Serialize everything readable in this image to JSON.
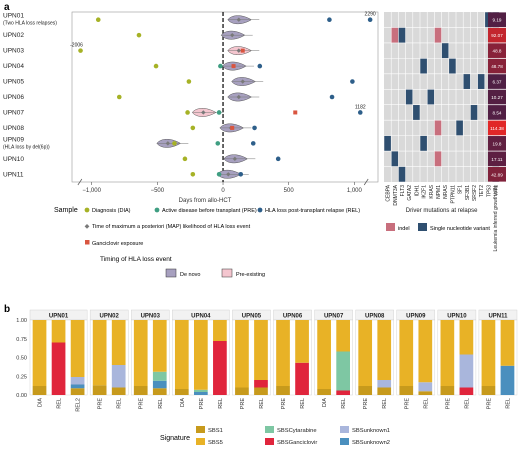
{
  "panels": {
    "a": "a",
    "b": "b"
  },
  "colors": {
    "dia": "#a6b226",
    "pre": "#3f9e82",
    "rel": "#2e5f8a",
    "map": "#7a7a7a",
    "gan": "#d95540",
    "denovo_fill": "#a7a0bf",
    "preexist_fill": "#f4c6cf",
    "indel": "#c86f7d",
    "snv": "#2f4f70",
    "grid": "#d9d9d9",
    "SBS1": "#c79a1c",
    "SBS5": "#e8b226",
    "SBSCytarabine": "#7ec7a3",
    "SBSGanciclovir": "#e0253c",
    "SBSunknown1": "#a9b6dc",
    "SBSunknown2": "#4a8fbe"
  },
  "chart_data": [
    {
      "type": "scatter",
      "xlabel": "Days from allo-HCT",
      "xticks": [
        "−1,000",
        "−500",
        "0",
        "500",
        "1,000"
      ],
      "xtick_values": [
        -1000,
        -500,
        0,
        500,
        1000
      ],
      "patients": [
        {
          "id": "UPN01",
          "sub": "(Two HLA loss relapses)",
          "dia": -950,
          "pre": null,
          "rel": [
            810,
            1120
          ],
          "denovo": true,
          "peak": 120,
          "top_label": "2290"
        },
        {
          "id": "UPN02",
          "sub": "",
          "dia": -640,
          "pre": null,
          "rel": [],
          "denovo": true,
          "peak": 70
        },
        {
          "id": "UPN03",
          "sub": "",
          "dia": -1085,
          "pre": null,
          "rel": [],
          "denovo": false,
          "peak": 120,
          "gan": [
            150
          ],
          "left_label": "-2006"
        },
        {
          "id": "UPN04",
          "sub": "",
          "dia": -510,
          "pre": -20,
          "rel": [
            280
          ],
          "denovo": true,
          "peak": 80,
          "gan": [
            80
          ]
        },
        {
          "id": "UPN05",
          "sub": "",
          "dia": -260,
          "pre": null,
          "rel": [
            985
          ],
          "denovo": true,
          "peak": 150
        },
        {
          "id": "UPN06",
          "sub": "",
          "dia": -790,
          "pre": null,
          "rel": [
            830
          ],
          "denovo": true,
          "peak": 120
        },
        {
          "id": "UPN07",
          "sub": "",
          "dia": -270,
          "pre": -30,
          "rel": [
            1045
          ],
          "denovo": false,
          "peak": -150,
          "gan": [
            550
          ],
          "top_label": "1182"
        },
        {
          "id": "UPN08",
          "sub": "",
          "dia": -230,
          "pre": null,
          "rel": [
            240
          ],
          "denovo": true,
          "peak": 60,
          "gan": [
            70
          ]
        },
        {
          "id": "UPN09",
          "sub": "(HLA loss by del(6p))",
          "dia": -370,
          "pre": -40,
          "rel": [
            230
          ],
          "denovo": true,
          "peak": -420
        },
        {
          "id": "UPN10",
          "sub": "",
          "dia": -290,
          "pre": null,
          "rel": [
            420
          ],
          "denovo": true,
          "peak": 90
        },
        {
          "id": "UPN11",
          "sub": "",
          "dia": -230,
          "pre": -30,
          "rel": [
            135
          ],
          "denovo": true,
          "peak": 40
        }
      ]
    },
    {
      "type": "heatmap",
      "xlabel": "Driver mutations at relapse",
      "genes": [
        "CEBPA",
        "DNMT3A",
        "FLT3",
        "GATA2",
        "IDH1",
        "IKZF1",
        "KRAS",
        "NPM1",
        "NRAS",
        "PTPN11",
        "SF1",
        "SF3B1",
        "SRSF2",
        "TET2",
        "TP53",
        "WT1"
      ],
      "mutations": [
        {
          "row": 0,
          "gene": 14,
          "type": "snv"
        },
        {
          "row": 0,
          "gene": 15,
          "type": "snv"
        },
        {
          "row": 1,
          "gene": 1,
          "type": "indel"
        },
        {
          "row": 1,
          "gene": 2,
          "type": "snv"
        },
        {
          "row": 1,
          "gene": 7,
          "type": "indel"
        },
        {
          "row": 2,
          "gene": 8,
          "type": "snv"
        },
        {
          "row": 3,
          "gene": 5,
          "type": "snv"
        },
        {
          "row": 3,
          "gene": 9,
          "type": "snv"
        },
        {
          "row": 4,
          "gene": 11,
          "type": "snv"
        },
        {
          "row": 4,
          "gene": 13,
          "type": "snv"
        },
        {
          "row": 5,
          "gene": 3,
          "type": "snv"
        },
        {
          "row": 5,
          "gene": 6,
          "type": "snv"
        },
        {
          "row": 6,
          "gene": 4,
          "type": "snv"
        },
        {
          "row": 6,
          "gene": 12,
          "type": "snv"
        },
        {
          "row": 7,
          "gene": 7,
          "type": "indel"
        },
        {
          "row": 7,
          "gene": 10,
          "type": "snv"
        },
        {
          "row": 8,
          "gene": 0,
          "type": "snv"
        },
        {
          "row": 8,
          "gene": 5,
          "type": "snv"
        },
        {
          "row": 9,
          "gene": 1,
          "type": "snv"
        },
        {
          "row": 9,
          "gene": 7,
          "type": "indel"
        },
        {
          "row": 10,
          "gene": 2,
          "type": "snv"
        },
        {
          "row": 10,
          "gene": 15,
          "type": "snv"
        }
      ],
      "growth_label": "Leukemia inferred growth rate",
      "growth": [
        "9.19",
        "92.07",
        "48.8",
        "48.78",
        "6.37",
        "10.27",
        "8.54",
        "114.38",
        "19.8",
        "17.11",
        "42.89"
      ],
      "growth_values": [
        9.19,
        92.07,
        48.8,
        48.78,
        6.37,
        10.27,
        8.54,
        114.38,
        19.8,
        17.11,
        42.89
      ]
    },
    {
      "type": "bar",
      "ylabel": "",
      "yticks": [
        "0.00",
        "0.25",
        "0.50",
        "0.75",
        "1.00"
      ],
      "signatures": [
        "SBS1",
        "SBS5",
        "SBSCytarabine",
        "SBSGanciclovir",
        "SBSunknown1",
        "SBSunknown2"
      ],
      "facets": [
        {
          "id": "UPN01",
          "bars": [
            {
              "label": "DIA",
              "SBS1": 0.12,
              "SBS5": 0.88
            },
            {
              "label": "REL",
              "SBS1": 0.0,
              "SBSGanciclovir": 0.7,
              "SBS5": 0.3
            },
            {
              "label": "REL2",
              "SBS1": 0.09,
              "SBSunknown1": 0.1,
              "SBSunknown2": 0.05,
              "SBS5": 0.76
            }
          ]
        },
        {
          "id": "UPN02",
          "bars": [
            {
              "label": "PRE",
              "SBS1": 0.13,
              "SBS5": 0.87
            },
            {
              "label": "REL",
              "SBS1": 0.1,
              "SBSunknown1": 0.3,
              "SBS5": 0.6
            }
          ]
        },
        {
          "id": "UPN03",
          "bars": [
            {
              "label": "PRE",
              "SBS1": 0.12,
              "SBS5": 0.88
            },
            {
              "label": "REL",
              "SBS1": 0.09,
              "SBSunknown2": 0.1,
              "SBSCytarabine": 0.12,
              "SBS5": 0.69
            }
          ]
        },
        {
          "id": "UPN04",
          "bars": [
            {
              "label": "DIA",
              "SBS1": 0.08,
              "SBS5": 0.92
            },
            {
              "label": "PRE",
              "SBSunknown2": 0.04,
              "SBSCytarabine": 0.03,
              "SBS5": 0.93
            },
            {
              "label": "REL",
              "SBSGanciclovir": 0.72,
              "SBS5": 0.28
            }
          ]
        },
        {
          "id": "UPN05",
          "bars": [
            {
              "label": "PRE",
              "SBS1": 0.1,
              "SBS5": 0.9
            },
            {
              "label": "REL",
              "SBS1": 0.1,
              "SBSGanciclovir": 0.1,
              "SBS5": 0.8
            }
          ]
        },
        {
          "id": "UPN06",
          "bars": [
            {
              "label": "PRE",
              "SBS1": 0.12,
              "SBS5": 0.88
            },
            {
              "label": "REL",
              "SBSGanciclovir": 0.43,
              "SBS5": 0.57
            }
          ]
        },
        {
          "id": "UPN07",
          "bars": [
            {
              "label": "DIA",
              "SBS1": 0.08,
              "SBS5": 0.92
            },
            {
              "label": "REL",
              "SBSGanciclovir": 0.06,
              "SBSCytarabine": 0.52,
              "SBS5": 0.42
            }
          ]
        },
        {
          "id": "UPN08",
          "bars": [
            {
              "label": "PRE",
              "SBS1": 0.12,
              "SBS5": 0.88
            },
            {
              "label": "REL",
              "SBS1": 0.1,
              "SBSunknown1": 0.1,
              "SBS5": 0.8
            }
          ]
        },
        {
          "id": "UPN09",
          "bars": [
            {
              "label": "PRE",
              "SBS1": 0.12,
              "SBS5": 0.88
            },
            {
              "label": "REL",
              "SBS1": 0.05,
              "SBSunknown1": 0.12,
              "SBS5": 0.83
            }
          ]
        },
        {
          "id": "UPN10",
          "bars": [
            {
              "label": "PRE",
              "SBS1": 0.12,
              "SBS5": 0.88
            },
            {
              "label": "REL",
              "SBSGanciclovir": 0.1,
              "SBSunknown1": 0.44,
              "SBS5": 0.46
            }
          ]
        },
        {
          "id": "UPN11",
          "bars": [
            {
              "label": "PRE",
              "SBS1": 0.12,
              "SBS5": 0.88
            },
            {
              "label": "REL",
              "SBSunknown2": 0.39,
              "SBS5": 0.61
            }
          ]
        }
      ]
    }
  ],
  "legend_a": {
    "sample_title": "Sample",
    "dia": "Diagnosis (DIA)",
    "pre": "Active disease before transplant (PRE)",
    "rel": "HLA loss post-transplant relapse (REL)",
    "map": "Time of maximum a posteriori (MAP) likelihood of HLA loss event",
    "gan": "Ganciclovir exposure",
    "timing_title": "Timing of HLA loss event",
    "denovo": "De novo",
    "preexist": "Pre-existing",
    "indel": "indel",
    "snv": "Single nucleotide variant"
  },
  "legend_b": {
    "title": "Signature"
  }
}
